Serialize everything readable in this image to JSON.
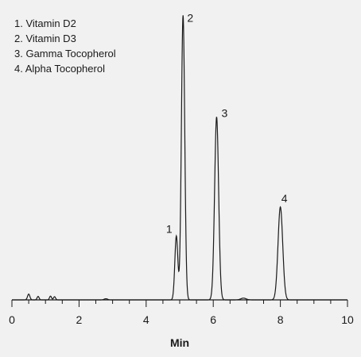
{
  "chart_data": {
    "type": "line",
    "title": "",
    "xlabel": "Min",
    "ylabel": "",
    "xlim": [
      0,
      10
    ],
    "ylim": [
      0,
      100
    ],
    "xticks": [
      0,
      2,
      4,
      6,
      8,
      10
    ],
    "grid": false,
    "legend": {
      "placement": "top-left",
      "entries": [
        "1. Vitamin D2",
        "2. Vitamin D3",
        "3. Gamma Tocopherol",
        "4. Alpha Tocopherol"
      ]
    },
    "peaks": [
      {
        "label": "1",
        "x": 4.9,
        "y": 22
      },
      {
        "label": "2",
        "x": 5.1,
        "y": 98
      },
      {
        "label": "3",
        "x": 6.1,
        "y": 63
      },
      {
        "label": "4",
        "x": 8.0,
        "y": 32
      }
    ],
    "minor_peaks": [
      {
        "x": 0.5,
        "y": 2.0,
        "w": 0.035
      },
      {
        "x": 0.78,
        "y": 1.2,
        "w": 0.03
      },
      {
        "x": 1.15,
        "y": 1.3,
        "w": 0.03
      },
      {
        "x": 1.27,
        "y": 1.1,
        "w": 0.03
      },
      {
        "x": 2.8,
        "y": 0.4,
        "w": 0.05
      },
      {
        "x": 6.9,
        "y": 0.6,
        "w": 0.08
      }
    ],
    "line_color": "#1a1a1a"
  }
}
